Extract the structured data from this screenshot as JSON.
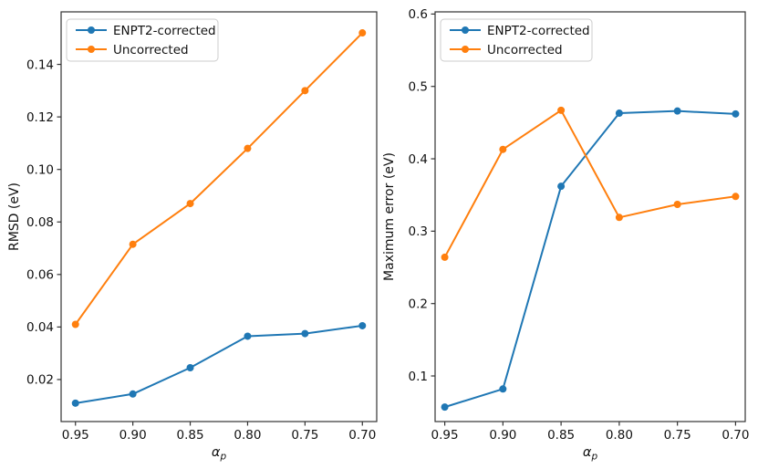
{
  "figure": {
    "background": "#ffffff",
    "text_color": "#111111",
    "spine_color": "#333333"
  },
  "chart_data": [
    {
      "type": "line",
      "title": "",
      "ylabel": "RMSD (eV)",
      "xlabel": {
        "symbol": "α",
        "subscript": "p"
      },
      "x": [
        0.95,
        0.9,
        0.85,
        0.8,
        0.75,
        0.7
      ],
      "xtick_labels": [
        "0.95",
        "0.90",
        "0.85",
        "0.80",
        "0.75",
        "0.70"
      ],
      "ytick_values": [
        0.02,
        0.04,
        0.06,
        0.08,
        0.1,
        0.12,
        0.14
      ],
      "ytick_labels": [
        "0.02",
        "0.04",
        "0.06",
        "0.08",
        "0.10",
        "0.12",
        "0.14"
      ],
      "xlim": [
        0.9625,
        0.6875
      ],
      "ylim": [
        0.004,
        0.16
      ],
      "x_axis_reversed": true,
      "grid": false,
      "legend": {
        "location": "upper left"
      },
      "series": [
        {
          "name": "ENPT2-corrected",
          "color": "#1f77b4",
          "marker": "circle",
          "values": [
            0.011,
            0.0145,
            0.0245,
            0.0365,
            0.0375,
            0.0405
          ]
        },
        {
          "name": "Uncorrected",
          "color": "#ff7f0e",
          "marker": "circle",
          "values": [
            0.041,
            0.0715,
            0.087,
            0.108,
            0.13,
            0.152
          ]
        }
      ]
    },
    {
      "type": "line",
      "title": "",
      "ylabel": "Maximum error (eV)",
      "xlabel": {
        "symbol": "α",
        "subscript": "p"
      },
      "x": [
        0.95,
        0.9,
        0.85,
        0.8,
        0.75,
        0.7
      ],
      "xtick_labels": [
        "0.95",
        "0.90",
        "0.85",
        "0.80",
        "0.75",
        "0.70"
      ],
      "ytick_values": [
        0.1,
        0.2,
        0.3,
        0.4,
        0.5,
        0.6
      ],
      "ytick_labels": [
        "0.1",
        "0.2",
        "0.3",
        "0.4",
        "0.5",
        "0.6"
      ],
      "xlim": [
        0.9583,
        0.6917
      ],
      "ylim": [
        0.037,
        0.603
      ],
      "x_axis_reversed": true,
      "grid": false,
      "legend": {
        "location": "upper left"
      },
      "series": [
        {
          "name": "ENPT2-corrected",
          "color": "#1f77b4",
          "marker": "circle",
          "values": [
            0.057,
            0.082,
            0.362,
            0.463,
            0.466,
            0.462
          ]
        },
        {
          "name": "Uncorrected",
          "color": "#ff7f0e",
          "marker": "circle",
          "values": [
            0.264,
            0.413,
            0.467,
            0.319,
            0.337,
            0.348
          ]
        }
      ]
    }
  ]
}
